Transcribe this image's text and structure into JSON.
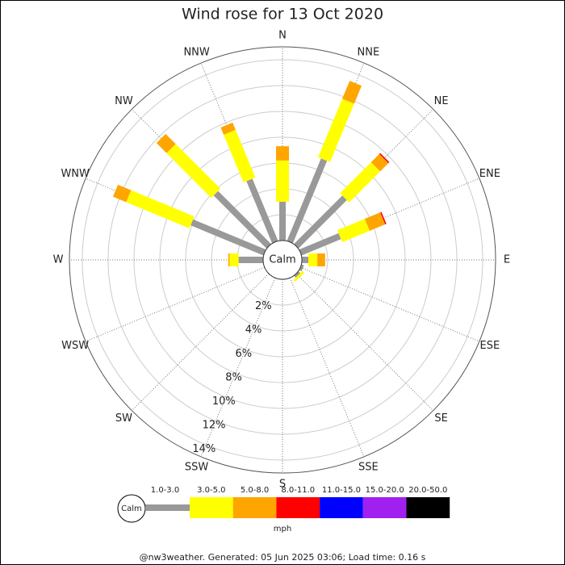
{
  "chart_data": {
    "type": "windrose",
    "title": "Wind rose for 13 Oct 2020",
    "categories": [
      "N",
      "NNE",
      "NE",
      "ENE",
      "E",
      "ESE",
      "SE",
      "SSE",
      "S",
      "SSW",
      "SW",
      "WSW",
      "W",
      "WNW",
      "NW",
      "NNW"
    ],
    "series": [
      {
        "name": "1.0-3.0",
        "color": "#999999",
        "values": [
          3.0,
          6.9,
          5.3,
          3.3,
          0.5,
          0.2,
          0.2,
          0,
          0,
          0,
          0,
          0,
          1.9,
          6.1,
          5.8,
          5.2
        ]
      },
      {
        "name": "3.0-5.0",
        "color": "#ffff00",
        "values": [
          3.2,
          4.9,
          3.4,
          2.3,
          0.7,
          0,
          0.2,
          0,
          0,
          0,
          0,
          0,
          0.7,
          5.3,
          4.9,
          4.0
        ]
      },
      {
        "name": "5.0-8.0",
        "color": "#ffa500",
        "values": [
          1.1,
          1.5,
          0.9,
          1.3,
          0.6,
          0,
          0,
          0,
          0,
          0,
          0,
          0,
          0.1,
          1.1,
          1.1,
          0.6
        ]
      },
      {
        "name": "8.0-11.0",
        "color": "#ff0000",
        "values": [
          0,
          0,
          0.1,
          0.1,
          0,
          0,
          0,
          0,
          0,
          0,
          0,
          0,
          0,
          0,
          0,
          0
        ]
      },
      {
        "name": "11.0-15.0",
        "color": "#0000ff",
        "values": [
          0,
          0,
          0,
          0,
          0,
          0,
          0,
          0,
          0,
          0,
          0,
          0,
          0,
          0,
          0,
          0
        ]
      },
      {
        "name": "15.0-20.0",
        "color": "#a020f0",
        "values": [
          0,
          0,
          0,
          0,
          0,
          0,
          0,
          0,
          0,
          0,
          0,
          0,
          0,
          0,
          0,
          0
        ]
      },
      {
        "name": "20.0-50.0",
        "color": "#000000",
        "values": [
          0,
          0,
          0,
          0,
          0,
          0,
          0,
          0,
          0,
          0,
          0,
          0,
          0,
          0,
          0,
          0
        ]
      }
    ],
    "rlim": [
      0,
      15
    ],
    "rticks": [
      {
        "value": 2,
        "label": "2%"
      },
      {
        "value": 4,
        "label": "4%"
      },
      {
        "value": 6,
        "label": "6%"
      },
      {
        "value": 8,
        "label": "8%"
      },
      {
        "value": 10,
        "label": "10%"
      },
      {
        "value": 12,
        "label": "12%"
      },
      {
        "value": 14,
        "label": "14%"
      }
    ],
    "center_label": "Calm",
    "unit": "mph"
  },
  "footer": "@nw3weather. Generated: 05 Jun 2025 03:06; Load time: 0.16 s"
}
